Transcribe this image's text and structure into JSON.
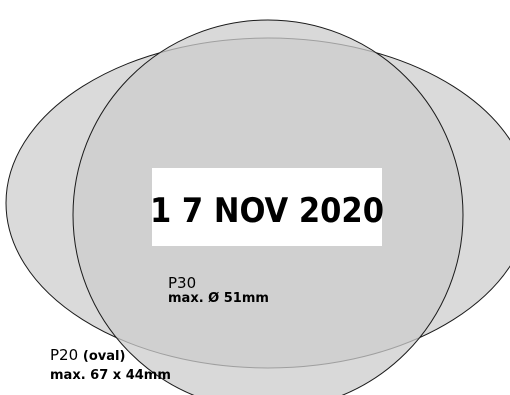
{
  "date_stamp": "1 7 NOV 2020",
  "p30": {
    "name": "P30",
    "size": "max. Ø 51mm"
  },
  "p20": {
    "name": "P20",
    "shape": "(oval)",
    "size": "max. 67 x 44mm"
  },
  "colors": {
    "fill": "#d4d4d4",
    "stroke": "#1a1a1a",
    "text_box": "#ffffff",
    "text": "#000000"
  }
}
